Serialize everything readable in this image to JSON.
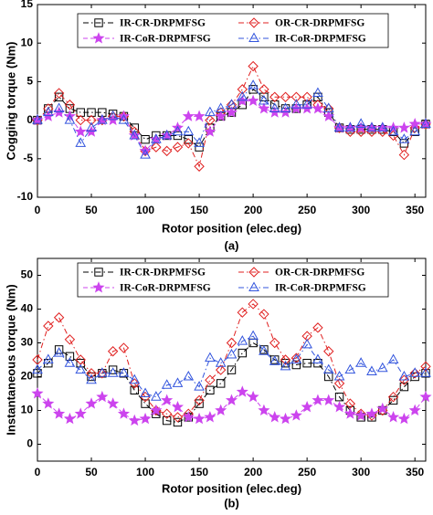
{
  "chart_data": [
    {
      "type": "line",
      "caption": "(a)",
      "xlabel": "Rotor position (elec.deg)",
      "ylabel": "Cogging torque (Nm)",
      "x": [
        0,
        10,
        20,
        30,
        40,
        50,
        60,
        70,
        80,
        90,
        100,
        110,
        120,
        130,
        140,
        150,
        160,
        170,
        180,
        190,
        200,
        210,
        220,
        230,
        240,
        250,
        260,
        270,
        280,
        290,
        300,
        310,
        320,
        330,
        340,
        350,
        360
      ],
      "xlim": [
        0,
        360
      ],
      "xticks": [
        0,
        50,
        100,
        150,
        200,
        250,
        300,
        350
      ],
      "ylim": [
        -10,
        15
      ],
      "yticks": [
        -10,
        -5,
        0,
        5,
        10,
        15
      ],
      "legend": "top",
      "series": [
        {
          "name": "IR-CR-DRPMFSG",
          "color": "#000000",
          "marker": "square",
          "dash": "dashdot",
          "values": [
            0,
            1.5,
            3,
            1.5,
            1,
            1,
            1,
            0.8,
            0.5,
            -1,
            -2.5,
            -2,
            -2,
            -2,
            -2.5,
            -3.5,
            -1,
            0.5,
            1,
            2,
            4,
            3,
            2,
            1.5,
            1.5,
            2,
            3,
            1,
            -1,
            -1.2,
            -1.2,
            -1.2,
            -1.2,
            -1.5,
            -3,
            -1.5,
            -0.5
          ]
        },
        {
          "name": "OR-CR-DRPMFSG",
          "color": "#e02020",
          "marker": "diamond",
          "dash": "dashdot",
          "values": [
            0,
            1.5,
            3.5,
            2,
            0,
            0,
            0,
            0.5,
            0.5,
            -1.5,
            -4,
            -3.5,
            -4,
            -3.5,
            -3,
            -6,
            0,
            1,
            2,
            4,
            7,
            4,
            3,
            3,
            3,
            3,
            2,
            1.5,
            -1,
            -1.5,
            -1.5,
            -1.5,
            -1.5,
            -2,
            -4.5,
            -1,
            -0.5
          ]
        },
        {
          "name": "IR-CoR-DRPMFSG",
          "color": "#cc44ee",
          "marker": "star",
          "dash": "dashed",
          "values": [
            0,
            0.5,
            1,
            0.5,
            -1.5,
            -1.5,
            0,
            0,
            0.5,
            -2,
            -4,
            -2.5,
            -2,
            -1,
            0.5,
            0.5,
            -1.5,
            0.5,
            1,
            2.5,
            2.5,
            1.5,
            1,
            1,
            1.5,
            1.5,
            1.5,
            0.5,
            -1,
            -1,
            -1,
            -1,
            -1,
            -1,
            -1,
            -0.5,
            -0.5
          ]
        },
        {
          "name": "IR-CoR-DRPMFSG",
          "color": "#3355dd",
          "marker": "triangle",
          "dash": "dashdot",
          "values": [
            0,
            1,
            1.5,
            0,
            -3,
            -1,
            0,
            0.5,
            0,
            -2,
            -4.5,
            -2.5,
            -2,
            -1.5,
            -1.5,
            -3,
            1,
            1.5,
            2,
            3,
            4.5,
            2.5,
            1.5,
            1.5,
            2,
            2,
            3.5,
            1.5,
            -1,
            -1,
            -0.5,
            -1,
            -1,
            -1.5,
            -2.5,
            -1.5,
            -0.5
          ]
        }
      ]
    },
    {
      "type": "line",
      "caption": "(b)",
      "xlabel": "Rotor position (elec.deg)",
      "ylabel": "Instantaneous torque (Nm)",
      "x": [
        0,
        10,
        20,
        30,
        40,
        50,
        60,
        70,
        80,
        90,
        100,
        110,
        120,
        130,
        140,
        150,
        160,
        170,
        180,
        190,
        200,
        210,
        220,
        230,
        240,
        250,
        260,
        270,
        280,
        290,
        300,
        310,
        320,
        330,
        340,
        350,
        360
      ],
      "xlim": [
        0,
        360
      ],
      "xticks": [
        0,
        50,
        100,
        150,
        200,
        250,
        300,
        350
      ],
      "ylim": [
        -5,
        55
      ],
      "yticks": [
        0,
        10,
        20,
        30,
        40,
        50
      ],
      "legend": "top",
      "series": [
        {
          "name": "IR-CR-DRPMFSG",
          "color": "#000000",
          "marker": "square",
          "dash": "dashdot",
          "values": [
            21,
            24,
            28,
            26,
            24,
            20,
            21,
            22,
            21,
            16,
            12,
            9,
            7,
            6.5,
            8,
            12,
            16,
            18,
            22,
            27,
            30,
            28,
            25,
            24,
            23.5,
            24,
            24,
            20,
            14,
            10,
            8,
            8,
            10,
            13,
            17,
            20,
            21
          ]
        },
        {
          "name": "OR-CR-DRPMFSG",
          "color": "#e02020",
          "marker": "diamond",
          "dash": "dashdot",
          "values": [
            25,
            35,
            37.5,
            31,
            25,
            21,
            21,
            27.5,
            28.5,
            18,
            14,
            10,
            9,
            8,
            9,
            13,
            19,
            22,
            30,
            39,
            41.5,
            38.5,
            30,
            25,
            25.5,
            32,
            34.5,
            27.5,
            18,
            12,
            9,
            8.5,
            10,
            14,
            19,
            21,
            23
          ]
        },
        {
          "name": "IR-CoR-DRPMFSG",
          "color": "#cc44ee",
          "marker": "star",
          "dash": "dashed",
          "values": [
            15,
            12,
            9,
            7.5,
            9,
            12,
            14,
            12,
            9,
            7,
            7.5,
            10,
            13,
            11,
            8,
            7.5,
            8,
            10,
            13,
            15.5,
            14,
            10,
            8,
            7.5,
            8.5,
            11,
            13,
            13,
            11,
            9,
            8.5,
            9,
            10.5,
            8,
            7.5,
            10,
            14
          ]
        },
        {
          "name": "IR-CoR-DRPMFSG",
          "color": "#3355dd",
          "marker": "triangle",
          "dash": "dashdot",
          "values": [
            22,
            25,
            27,
            24,
            22,
            19,
            21,
            21,
            21,
            19,
            15,
            14,
            17.5,
            18,
            20,
            17,
            25.5,
            24,
            26.5,
            30.5,
            32,
            27.5,
            24.5,
            23,
            25,
            29.5,
            25,
            22,
            20,
            22,
            24,
            21.5,
            22.5,
            25,
            20,
            21,
            21
          ]
        }
      ]
    }
  ]
}
